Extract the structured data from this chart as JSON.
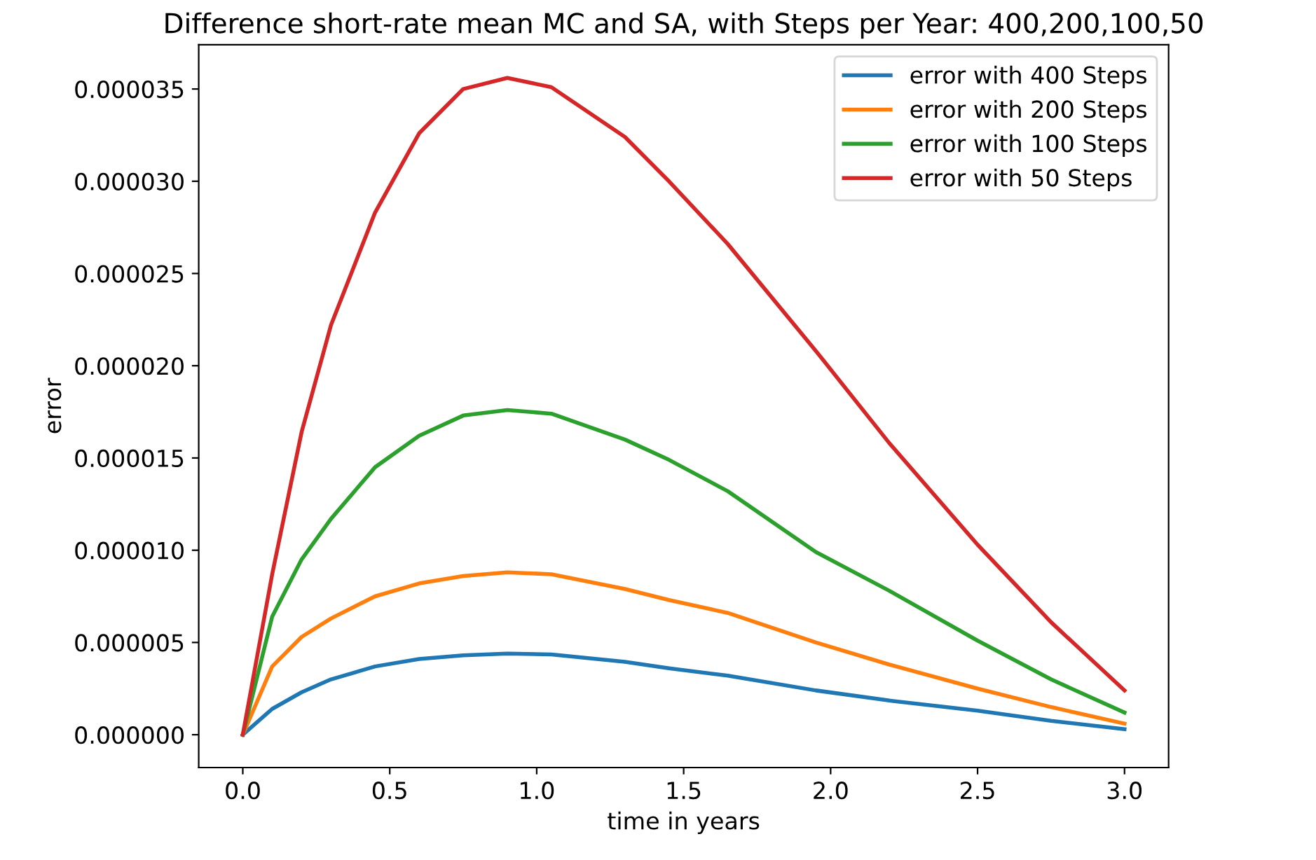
{
  "chart_data": {
    "type": "line",
    "title": "Difference short-rate mean MC and SA, with Steps per Year: 400,200,100,50",
    "xlabel": "time in years",
    "ylabel": "error",
    "x": [
      0,
      0.1,
      0.2,
      0.3,
      0.45,
      0.6,
      0.75,
      0.9,
      1.05,
      1.3,
      1.45,
      1.65,
      1.95,
      2.2,
      2.5,
      2.75,
      3.0
    ],
    "series": [
      {
        "name": "error with 400 Steps",
        "color": "#1f77b4",
        "values": [
          0,
          1.4e-06,
          2.3e-06,
          3e-06,
          3.7e-06,
          4.1e-06,
          4.3e-06,
          4.4e-06,
          4.35e-06,
          3.95e-06,
          3.6e-06,
          3.2e-06,
          2.4e-06,
          1.85e-06,
          1.3e-06,
          7.5e-07,
          3e-07
        ]
      },
      {
        "name": "error with 200 Steps",
        "color": "#ff7f0e",
        "values": [
          0,
          3.7e-06,
          5.3e-06,
          6.3e-06,
          7.5e-06,
          8.2e-06,
          8.6e-06,
          8.8e-06,
          8.7e-06,
          7.9e-06,
          7.3e-06,
          6.6e-06,
          5e-06,
          3.8e-06,
          2.5e-06,
          1.5e-06,
          6e-07
        ]
      },
      {
        "name": "error with 100 Steps",
        "color": "#2ca02c",
        "values": [
          0,
          6.4e-06,
          9.5e-06,
          1.17e-05,
          1.45e-05,
          1.62e-05,
          1.73e-05,
          1.76e-05,
          1.74e-05,
          1.6e-05,
          1.49e-05,
          1.32e-05,
          9.9e-06,
          7.8e-06,
          5.1e-06,
          3e-06,
          1.2e-06
        ]
      },
      {
        "name": "error with 50 Steps",
        "color": "#d62728",
        "values": [
          0,
          8.7e-06,
          1.64e-05,
          2.22e-05,
          2.83e-05,
          3.26e-05,
          3.5e-05,
          3.56e-05,
          3.51e-05,
          3.24e-05,
          3e-05,
          2.66e-05,
          2.08e-05,
          1.58e-05,
          1.03e-05,
          6.1e-06,
          2.4e-06
        ]
      }
    ],
    "xlim": [
      -0.15,
      3.15
    ],
    "ylim": [
      -1.78e-06,
      3.74e-05
    ],
    "xticks": [
      {
        "value": 0,
        "label": "0.0"
      },
      0.5,
      {
        "value": 1,
        "label": "1.0"
      },
      1.5,
      {
        "value": 2,
        "label": "2.0"
      },
      2.5,
      {
        "value": 3,
        "label": "3.0"
      }
    ],
    "yticks": [
      {
        "value": 0,
        "label": "0.000000"
      },
      {
        "value": 5e-06,
        "label": "0.000005"
      },
      {
        "value": 1e-05,
        "label": "0.000010"
      },
      {
        "value": 1.5e-05,
        "label": "0.000015"
      },
      {
        "value": 2e-05,
        "label": "0.000020"
      },
      {
        "value": 2.5e-05,
        "label": "0.000025"
      },
      {
        "value": 3e-05,
        "label": "0.000030"
      },
      {
        "value": 3.5e-05,
        "label": "0.000035"
      }
    ],
    "grid": false,
    "legend": "upper right",
    "marker": "none",
    "line_style": "solid"
  }
}
